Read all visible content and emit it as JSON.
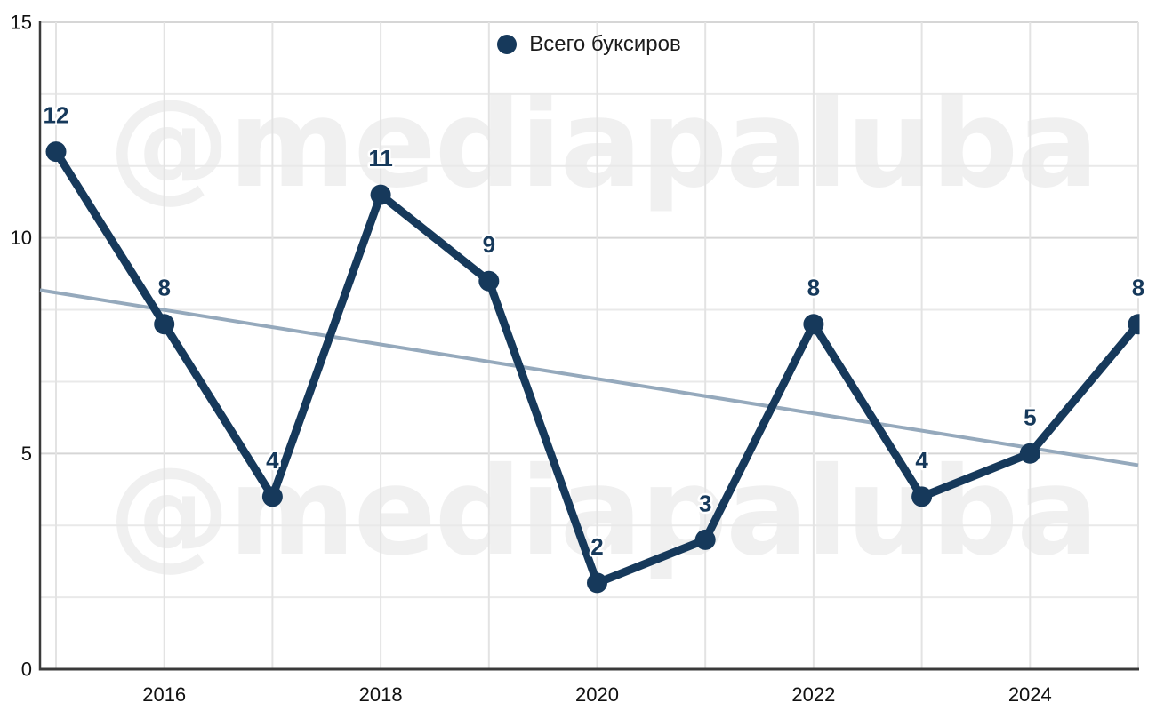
{
  "watermark": {
    "text": "@mediapaluba",
    "color": "#f0f0f0"
  },
  "legend": {
    "label": "Всего буксиров",
    "marker_color": "#16395b",
    "text_color": "#1c1c1c"
  },
  "chart_data": {
    "type": "line",
    "title": "",
    "xlabel": "",
    "ylabel": "",
    "x": [
      2015,
      2016,
      2017,
      2018,
      2019,
      2020,
      2021,
      2022,
      2023,
      2024,
      2025
    ],
    "series": [
      {
        "name": "Всего буксиров",
        "values": [
          12,
          8,
          4,
          11,
          9,
          2,
          3,
          8,
          4,
          5,
          8
        ],
        "color": "#16395b",
        "marker": "circle",
        "data_labels": true
      }
    ],
    "trendline": {
      "x1": 2014.852,
      "v1": 8.79,
      "x2": 2025,
      "v2": 4.73,
      "color": "#95a9bc"
    },
    "xlim": [
      2014.852,
      2025
    ],
    "ylim": [
      0,
      15
    ],
    "x_ticks": [
      {
        "label": "2016",
        "value": 2016
      },
      {
        "label": "2018",
        "value": 2018
      },
      {
        "label": "2020",
        "value": 2020
      },
      {
        "label": "2022",
        "value": 2022
      },
      {
        "label": "2024",
        "value": 2024
      }
    ],
    "y_ticks": [
      {
        "label": "0",
        "value": 0
      },
      {
        "label": "5",
        "value": 5
      },
      {
        "label": "10",
        "value": 10
      },
      {
        "label": "15",
        "value": 15
      }
    ],
    "grid": {
      "horizontal_minor_step": 1.6666667,
      "horizontal_major_step": 5,
      "vertical_step_years": 1,
      "minor_color": "#e9e9e9",
      "major_color": "#d6d6d6",
      "vertical_color": "#e3e3e3",
      "legend_position": "top-center"
    },
    "axis_color": "#3a3a3a",
    "tick_color": "#111111"
  }
}
